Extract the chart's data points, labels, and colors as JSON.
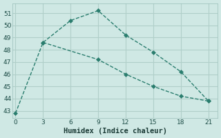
{
  "line1_x": [
    0,
    3,
    6,
    9,
    12,
    15,
    18,
    21
  ],
  "line1_y": [
    42.8,
    48.6,
    50.4,
    51.2,
    49.2,
    47.8,
    46.2,
    43.8
  ],
  "line2_x": [
    3,
    9,
    12,
    15,
    18,
    21
  ],
  "line2_y": [
    48.6,
    47.2,
    46.0,
    45.0,
    44.2,
    43.8
  ],
  "line_color": "#2a7d6e",
  "bg_color": "#cfe8e4",
  "grid_color": "#b0cfc9",
  "xlabel": "Humidex (Indice chaleur)",
  "xlabel_fontsize": 7.5,
  "xticks": [
    0,
    3,
    6,
    9,
    12,
    15,
    18,
    21
  ],
  "yticks": [
    43,
    44,
    45,
    46,
    47,
    48,
    49,
    50,
    51
  ],
  "ylim": [
    42.4,
    51.8
  ],
  "xlim": [
    -0.3,
    22.0
  ]
}
